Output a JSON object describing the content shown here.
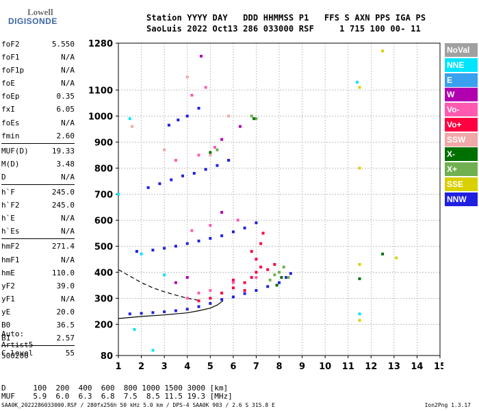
{
  "logo": {
    "top": "Lowell",
    "bottom": "DIGISONDE"
  },
  "header": {
    "line1": "Station YYYY DAY   DDD HHMMSS P1   FFS S AXN PPS IGA PS",
    "line2": "SaoLuis 2022 Oct13 286 033000 RSF     1 715 100 00- 11"
  },
  "params": [
    {
      "label": "foF2",
      "value": "5.550"
    },
    {
      "label": "foF1",
      "value": "N/A"
    },
    {
      "label": "foF1p",
      "value": "N/A"
    },
    {
      "label": "foE",
      "value": "N/A"
    },
    {
      "label": "foEp",
      "value": "0.35"
    },
    {
      "label": "fxI",
      "value": "6.05"
    },
    {
      "label": "foEs",
      "value": "N/A"
    },
    {
      "label": "fmin",
      "value": "2.60"
    },
    {
      "sep": true
    },
    {
      "label": "MUF(D)",
      "value": "19.33"
    },
    {
      "label": "M(D)",
      "value": "3.48"
    },
    {
      "label": "D",
      "value": "N/A"
    },
    {
      "sep": true
    },
    {
      "label": "h`F",
      "value": "245.0"
    },
    {
      "label": "h`F2",
      "value": "245.0"
    },
    {
      "label": "h`E",
      "value": "N/A"
    },
    {
      "label": "h`Es",
      "value": "N/A"
    },
    {
      "sep": true
    },
    {
      "label": "hmF2",
      "value": "271.4"
    },
    {
      "label": "hmF1",
      "value": "N/A"
    },
    {
      "label": "hmE",
      "value": "110.0"
    },
    {
      "label": "yF2",
      "value": "39.0"
    },
    {
      "label": "yF1",
      "value": "N/A"
    },
    {
      "label": "yE",
      "value": "20.0"
    },
    {
      "label": "B0",
      "value": "36.5"
    },
    {
      "label": "B1",
      "value": "2.57"
    },
    {
      "sep": true
    },
    {
      "label": "C-level",
      "value": "55"
    }
  ],
  "auto": {
    "line1": "Auto:",
    "line2": "Artist5",
    "line3": "500200"
  },
  "legend": [
    {
      "label": "NoVal",
      "color": "#a0a0a0"
    },
    {
      "label": "NNE",
      "color": "#00e5ff"
    },
    {
      "label": "E",
      "color": "#3aa0f0"
    },
    {
      "label": "W",
      "color": "#b000b0"
    },
    {
      "label": "Vo-",
      "color": "#ff5ab0"
    },
    {
      "label": "Vo+",
      "color": "#ff0040"
    },
    {
      "label": "SSW",
      "color": "#f0a8a8"
    },
    {
      "label": "X-",
      "color": "#007000"
    },
    {
      "label": "X+",
      "color": "#70b050"
    },
    {
      "label": "SSE",
      "color": "#d8d000"
    },
    {
      "label": "NNW",
      "color": "#2020e0"
    }
  ],
  "bottom": {
    "d_line": "D      100  200  400  600  800 1000 1500 3000 [km]",
    "muf_line": "MUF    5.9  6.0  6.3  6.8  7.5  8.5 11.5 19.3 [MHz]"
  },
  "footer": {
    "left": "SAA0K_2022286033000.RSF / 280fx256h 50 kHz 5.0 km / DPS-4 SAA0K 903 / 2.6 S 315.8 E",
    "right": "Ion2Png 1.3.17"
  },
  "chart_data": {
    "type": "scatter",
    "title": "",
    "xlabel": "",
    "ylabel": "",
    "xlim": [
      1,
      15
    ],
    "ylim": [
      80,
      1280
    ],
    "x_ticks": [
      1,
      2,
      3,
      4,
      5,
      6,
      7,
      8,
      9,
      10,
      11,
      12,
      13,
      14,
      15
    ],
    "y_ticks": [
      80,
      200,
      300,
      400,
      500,
      600,
      700,
      800,
      900,
      1000,
      1100,
      1280
    ],
    "grid": true,
    "series": [
      {
        "name": "NNW",
        "color": "#2020e0",
        "points": [
          [
            1.5,
            240
          ],
          [
            2.0,
            242
          ],
          [
            2.5,
            245
          ],
          [
            3.0,
            248
          ],
          [
            3.5,
            252
          ],
          [
            4.0,
            258
          ],
          [
            4.5,
            268
          ],
          [
            5.0,
            280
          ],
          [
            5.5,
            295
          ],
          [
            6.0,
            305
          ],
          [
            6.5,
            318
          ],
          [
            7.0,
            330
          ],
          [
            7.5,
            345
          ],
          [
            8.0,
            360
          ],
          [
            8.3,
            380
          ],
          [
            8.5,
            395
          ],
          [
            1.8,
            480
          ],
          [
            2.5,
            485
          ],
          [
            3.0,
            492
          ],
          [
            3.5,
            500
          ],
          [
            4.0,
            510
          ],
          [
            4.5,
            520
          ],
          [
            5.0,
            530
          ],
          [
            5.5,
            540
          ],
          [
            6.0,
            555
          ],
          [
            6.5,
            570
          ],
          [
            7.0,
            590
          ],
          [
            2.3,
            725
          ],
          [
            2.8,
            740
          ],
          [
            3.3,
            755
          ],
          [
            3.8,
            770
          ],
          [
            4.3,
            780
          ],
          [
            4.8,
            795
          ],
          [
            5.3,
            810
          ],
          [
            5.8,
            830
          ],
          [
            3.2,
            965
          ],
          [
            3.6,
            985
          ],
          [
            4.0,
            1000
          ],
          [
            4.5,
            1030
          ]
        ]
      },
      {
        "name": "Vo+",
        "color": "#ff0040",
        "points": [
          [
            4.5,
            290
          ],
          [
            5.0,
            300
          ],
          [
            5.5,
            320
          ],
          [
            6.0,
            340
          ],
          [
            6.5,
            360
          ],
          [
            6.8,
            380
          ],
          [
            7.0,
            400
          ],
          [
            7.2,
            420
          ],
          [
            7.0,
            450
          ],
          [
            6.8,
            480
          ],
          [
            7.5,
            410
          ],
          [
            7.2,
            510
          ],
          [
            6.5,
            330
          ],
          [
            6.0,
            370
          ],
          [
            7.8,
            430
          ],
          [
            7.3,
            550
          ]
        ]
      },
      {
        "name": "Vo-",
        "color": "#ff5ab0",
        "points": [
          [
            4.0,
            300
          ],
          [
            4.5,
            320
          ],
          [
            5.0,
            330
          ],
          [
            6.0,
            360
          ],
          [
            7.0,
            380
          ],
          [
            4.2,
            560
          ],
          [
            5.0,
            580
          ],
          [
            6.2,
            600
          ],
          [
            3.5,
            830
          ],
          [
            4.5,
            850
          ],
          [
            5.2,
            880
          ],
          [
            4.2,
            1080
          ],
          [
            4.8,
            1110
          ]
        ]
      },
      {
        "name": "X+",
        "color": "#70b050",
        "points": [
          [
            7.6,
            370
          ],
          [
            7.8,
            390
          ],
          [
            8.0,
            400
          ],
          [
            8.2,
            420
          ],
          [
            8.4,
            380
          ],
          [
            6.8,
            1000
          ],
          [
            7.0,
            990
          ],
          [
            5.3,
            870
          ]
        ]
      },
      {
        "name": "X-",
        "color": "#007000",
        "points": [
          [
            7.9,
            350
          ],
          [
            8.1,
            380
          ],
          [
            5.0,
            860
          ],
          [
            6.9,
            990
          ],
          [
            11.5,
            375
          ],
          [
            12.5,
            470
          ]
        ]
      },
      {
        "name": "W",
        "color": "#b000b0",
        "points": [
          [
            3.5,
            360
          ],
          [
            4.0,
            380
          ],
          [
            5.5,
            630
          ],
          [
            4.6,
            1230
          ],
          [
            5.5,
            910
          ],
          [
            6.3,
            960
          ]
        ]
      },
      {
        "name": "NNE",
        "color": "#00e5ff",
        "points": [
          [
            1.5,
            990
          ],
          [
            1.0,
            700
          ],
          [
            11.4,
            1130
          ],
          [
            11.5,
            240
          ],
          [
            3.0,
            390
          ],
          [
            2.0,
            470
          ],
          [
            1.7,
            180
          ],
          [
            2.5,
            100
          ]
        ]
      },
      {
        "name": "SSE",
        "color": "#d8d000",
        "points": [
          [
            11.5,
            1110
          ],
          [
            11.5,
            800
          ],
          [
            11.5,
            430
          ],
          [
            11.5,
            215
          ],
          [
            13.1,
            455
          ],
          [
            12.5,
            1250
          ]
        ]
      },
      {
        "name": "SSW",
        "color": "#f0a8a8",
        "points": [
          [
            5.0,
            850
          ],
          [
            5.8,
            1000
          ],
          [
            4.0,
            1150
          ],
          [
            3.0,
            870
          ],
          [
            1.6,
            960
          ]
        ]
      }
    ],
    "lines": [
      {
        "style": "dashed",
        "points": [
          [
            1,
            410
          ],
          [
            1.5,
            385
          ],
          [
            2,
            360
          ],
          [
            2.5,
            340
          ],
          [
            3,
            325
          ],
          [
            3.5,
            312
          ],
          [
            4,
            300
          ],
          [
            4.5,
            292
          ]
        ]
      },
      {
        "style": "solid",
        "points": [
          [
            1,
            222
          ],
          [
            2,
            230
          ],
          [
            3,
            236
          ],
          [
            4,
            244
          ],
          [
            4.5,
            252
          ],
          [
            5,
            262
          ],
          [
            5.3,
            274
          ],
          [
            5.55,
            290
          ]
        ]
      }
    ]
  }
}
